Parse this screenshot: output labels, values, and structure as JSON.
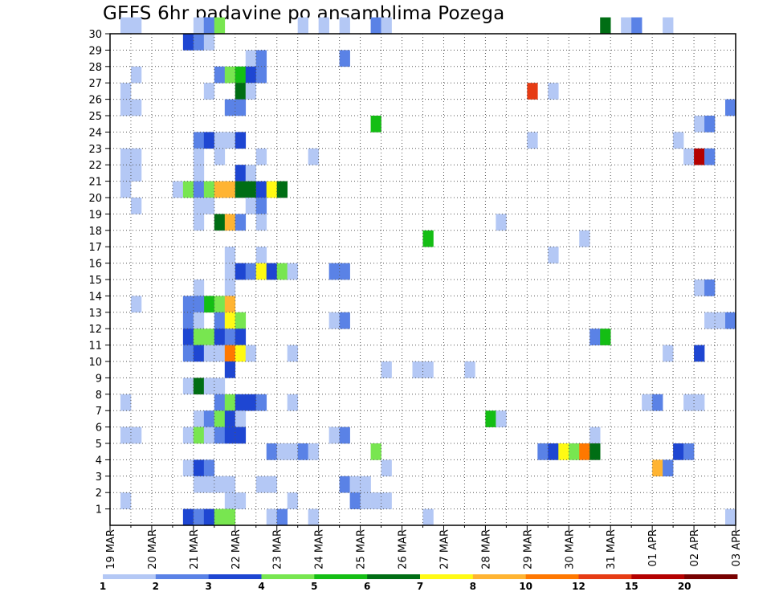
{
  "chart_data": {
    "type": "heatmap",
    "title": "GEFS 6hr padavine po ansamblima Pozega",
    "xlabel": "",
    "ylabel": "",
    "x_ticks": [
      "19 MAR",
      "20 MAR",
      "21 MAR",
      "22 MAR",
      "23 MAR",
      "24 MAR",
      "25 MAR",
      "26 MAR",
      "27 MAR",
      "28 MAR",
      "29 MAR",
      "30 MAR",
      "31 MAR",
      "01 APR",
      "02 APR",
      "03 APR"
    ],
    "x_range_steps": [
      0,
      60
    ],
    "y_ticks": [
      "1",
      "2",
      "3",
      "4",
      "5",
      "6",
      "7",
      "8",
      "9",
      "10",
      "11",
      "12",
      "13",
      "14",
      "15",
      "16",
      "17",
      "18",
      "19",
      "20",
      "21",
      "22",
      "23",
      "24",
      "25",
      "26",
      "27",
      "28",
      "29",
      "30"
    ],
    "y_range": [
      0,
      30
    ],
    "grid": true,
    "colorbar": {
      "position": "bottom",
      "labels": [
        "1",
        "2",
        "3",
        "4",
        "5",
        "6",
        "7",
        "8",
        "10",
        "12",
        "15",
        "20"
      ],
      "colors": [
        "#b4c8f5",
        "#5a82e6",
        "#1e46d2",
        "#78e650",
        "#14be14",
        "#006e14",
        "#fffa14",
        "#ffb432",
        "#ff7800",
        "#e63c14",
        "#b40000",
        "#780000"
      ]
    },
    "cells": [
      [
        30,
        1,
        1,
        2,
        1
      ],
      [
        30,
        8,
        1,
        9,
        2
      ],
      [
        30,
        9,
        2,
        10,
        4
      ],
      [
        30,
        18,
        1,
        20,
        1
      ],
      [
        30,
        22,
        1,
        25,
        2
      ],
      [
        30,
        26,
        1,
        47,
        6
      ],
      [
        30,
        49,
        1,
        50,
        2
      ],
      [
        30,
        53,
        1
      ],
      [
        29,
        7,
        3
      ],
      [
        29,
        8,
        2
      ],
      [
        29,
        9,
        1
      ],
      [
        28,
        13,
        1
      ],
      [
        28,
        14,
        2
      ],
      [
        28,
        22,
        2
      ],
      [
        27,
        2,
        1
      ],
      [
        27,
        10,
        2
      ],
      [
        27,
        11,
        4,
        12,
        5
      ],
      [
        27,
        13,
        3
      ],
      [
        27,
        14,
        2
      ],
      [
        26,
        1,
        1
      ],
      [
        26,
        9,
        1
      ],
      [
        26,
        12,
        6
      ],
      [
        26,
        13,
        1
      ],
      [
        26,
        40,
        10
      ],
      [
        26,
        42,
        1
      ],
      [
        25,
        1,
        1,
        2,
        1
      ],
      [
        25,
        11,
        2,
        12,
        2
      ],
      [
        25,
        59,
        2
      ],
      [
        24,
        25,
        5
      ],
      [
        24,
        56,
        1
      ],
      [
        24,
        57,
        2
      ],
      [
        23,
        8,
        2
      ],
      [
        23,
        9,
        3
      ],
      [
        23,
        10,
        1,
        11,
        1
      ],
      [
        23,
        12,
        3
      ],
      [
        23,
        40,
        1
      ],
      [
        23,
        54,
        1
      ],
      [
        22,
        1,
        1,
        2,
        1
      ],
      [
        22,
        8,
        1
      ],
      [
        22,
        10,
        1
      ],
      [
        22,
        14,
        1
      ],
      [
        22,
        19,
        1
      ],
      [
        22,
        55,
        1
      ],
      [
        22,
        56,
        11
      ],
      [
        22,
        57,
        2
      ],
      [
        21,
        1,
        1,
        2,
        1
      ],
      [
        21,
        8,
        1
      ],
      [
        21,
        12,
        3
      ],
      [
        21,
        13,
        1
      ],
      [
        20,
        1,
        1
      ],
      [
        20,
        6,
        1
      ],
      [
        20,
        7,
        4
      ],
      [
        20,
        8,
        2
      ],
      [
        20,
        9,
        4
      ],
      [
        20,
        10,
        8
      ],
      [
        20,
        11,
        8
      ],
      [
        20,
        12,
        6
      ],
      [
        20,
        13,
        6
      ],
      [
        20,
        14,
        3
      ],
      [
        20,
        15,
        7
      ],
      [
        20,
        16,
        6
      ],
      [
        19,
        2,
        1
      ],
      [
        19,
        8,
        1,
        9,
        1
      ],
      [
        19,
        13,
        1
      ],
      [
        19,
        14,
        2
      ],
      [
        18,
        8,
        1
      ],
      [
        18,
        10,
        6
      ],
      [
        18,
        11,
        8
      ],
      [
        18,
        12,
        2
      ],
      [
        18,
        14,
        1
      ],
      [
        18,
        37,
        1
      ],
      [
        17,
        30,
        5
      ],
      [
        17,
        45,
        1
      ],
      [
        16,
        11,
        1
      ],
      [
        16,
        14,
        1
      ],
      [
        16,
        42,
        1
      ],
      [
        15,
        11,
        1
      ],
      [
        15,
        12,
        3
      ],
      [
        15,
        13,
        2
      ],
      [
        15,
        14,
        7
      ],
      [
        15,
        15,
        3
      ],
      [
        15,
        16,
        4
      ],
      [
        15,
        17,
        1
      ],
      [
        15,
        21,
        2,
        22,
        2
      ],
      [
        14,
        8,
        1
      ],
      [
        14,
        11,
        1
      ],
      [
        14,
        56,
        1
      ],
      [
        14,
        57,
        2
      ],
      [
        13,
        2,
        1
      ],
      [
        13,
        7,
        2,
        8,
        2
      ],
      [
        13,
        9,
        5
      ],
      [
        13,
        10,
        4
      ],
      [
        13,
        11,
        8
      ],
      [
        12,
        7,
        2
      ],
      [
        13,
        8,
        2
      ],
      [
        12,
        8,
        1
      ],
      [
        12,
        10,
        2
      ],
      [
        12,
        11,
        7
      ],
      [
        12,
        12,
        4
      ],
      [
        12,
        21,
        1
      ],
      [
        12,
        22,
        2
      ],
      [
        12,
        57,
        1,
        58,
        1
      ],
      [
        12,
        59,
        2
      ],
      [
        11,
        7,
        3
      ],
      [
        11,
        8,
        4,
        9,
        4
      ],
      [
        11,
        10,
        3
      ],
      [
        11,
        11,
        2
      ],
      [
        11,
        12,
        3
      ],
      [
        11,
        46,
        2
      ],
      [
        11,
        47,
        5
      ],
      [
        10,
        7,
        2
      ],
      [
        10,
        8,
        3
      ],
      [
        10,
        9,
        1,
        10,
        1
      ],
      [
        10,
        11,
        9
      ],
      [
        10,
        12,
        7
      ],
      [
        10,
        13,
        1
      ],
      [
        10,
        17,
        1
      ],
      [
        10,
        53,
        1
      ],
      [
        10,
        56,
        3
      ],
      [
        9,
        11,
        3
      ],
      [
        9,
        26,
        1
      ],
      [
        9,
        29,
        1,
        30,
        1
      ],
      [
        9,
        34,
        1
      ],
      [
        8,
        7,
        1
      ],
      [
        8,
        8,
        6
      ],
      [
        8,
        9,
        1,
        10,
        1
      ],
      [
        7,
        1,
        1
      ],
      [
        7,
        10,
        2
      ],
      [
        7,
        11,
        4
      ],
      [
        7,
        12,
        3
      ],
      [
        7,
        13,
        3
      ],
      [
        7,
        14,
        2
      ],
      [
        7,
        17,
        1
      ],
      [
        7,
        51,
        1
      ],
      [
        7,
        52,
        2
      ],
      [
        7,
        55,
        1,
        56,
        1
      ],
      [
        6,
        8,
        1
      ],
      [
        6,
        9,
        2
      ],
      [
        6,
        10,
        4
      ],
      [
        6,
        11,
        3
      ],
      [
        6,
        12,
        1
      ],
      [
        6,
        36,
        5
      ],
      [
        6,
        37,
        1
      ],
      [
        5,
        1,
        1,
        2,
        1
      ],
      [
        5,
        7,
        1
      ],
      [
        5,
        8,
        4
      ],
      [
        5,
        9,
        1
      ],
      [
        5,
        10,
        2
      ],
      [
        5,
        11,
        3,
        12,
        3
      ],
      [
        5,
        21,
        1
      ],
      [
        5,
        22,
        2
      ],
      [
        5,
        46,
        1
      ],
      [
        4,
        15,
        2
      ],
      [
        4,
        16,
        1,
        17,
        1
      ],
      [
        4,
        18,
        2
      ],
      [
        4,
        19,
        1
      ],
      [
        4,
        25,
        4
      ],
      [
        4,
        41,
        2
      ],
      [
        4,
        42,
        3
      ],
      [
        4,
        43,
        7
      ],
      [
        4,
        44,
        4
      ],
      [
        4,
        45,
        9
      ],
      [
        4,
        46,
        6
      ],
      [
        4,
        54,
        3
      ],
      [
        4,
        55,
        2
      ],
      [
        3,
        7,
        1
      ],
      [
        3,
        8,
        3
      ],
      [
        3,
        9,
        2
      ],
      [
        3,
        26,
        1
      ],
      [
        3,
        52,
        8
      ],
      [
        3,
        53,
        2
      ],
      [
        2,
        8,
        1,
        9,
        1,
        10,
        1,
        11,
        1
      ],
      [
        2,
        14,
        1,
        15,
        1
      ],
      [
        2,
        22,
        2
      ],
      [
        2,
        23,
        1,
        24,
        1
      ],
      [
        1,
        1,
        1
      ],
      [
        1,
        11,
        1,
        12,
        1
      ],
      [
        1,
        17,
        1
      ],
      [
        1,
        23,
        2
      ],
      [
        1,
        24,
        1,
        25,
        1,
        26,
        1
      ],
      [
        0,
        7,
        3
      ],
      [
        0,
        8,
        2
      ],
      [
        0,
        9,
        3
      ],
      [
        0,
        10,
        4,
        11,
        4
      ],
      [
        0,
        15,
        1
      ],
      [
        0,
        16,
        2
      ],
      [
        0,
        19,
        1
      ],
      [
        0,
        30,
        1
      ],
      [
        0,
        59,
        1
      ]
    ]
  }
}
